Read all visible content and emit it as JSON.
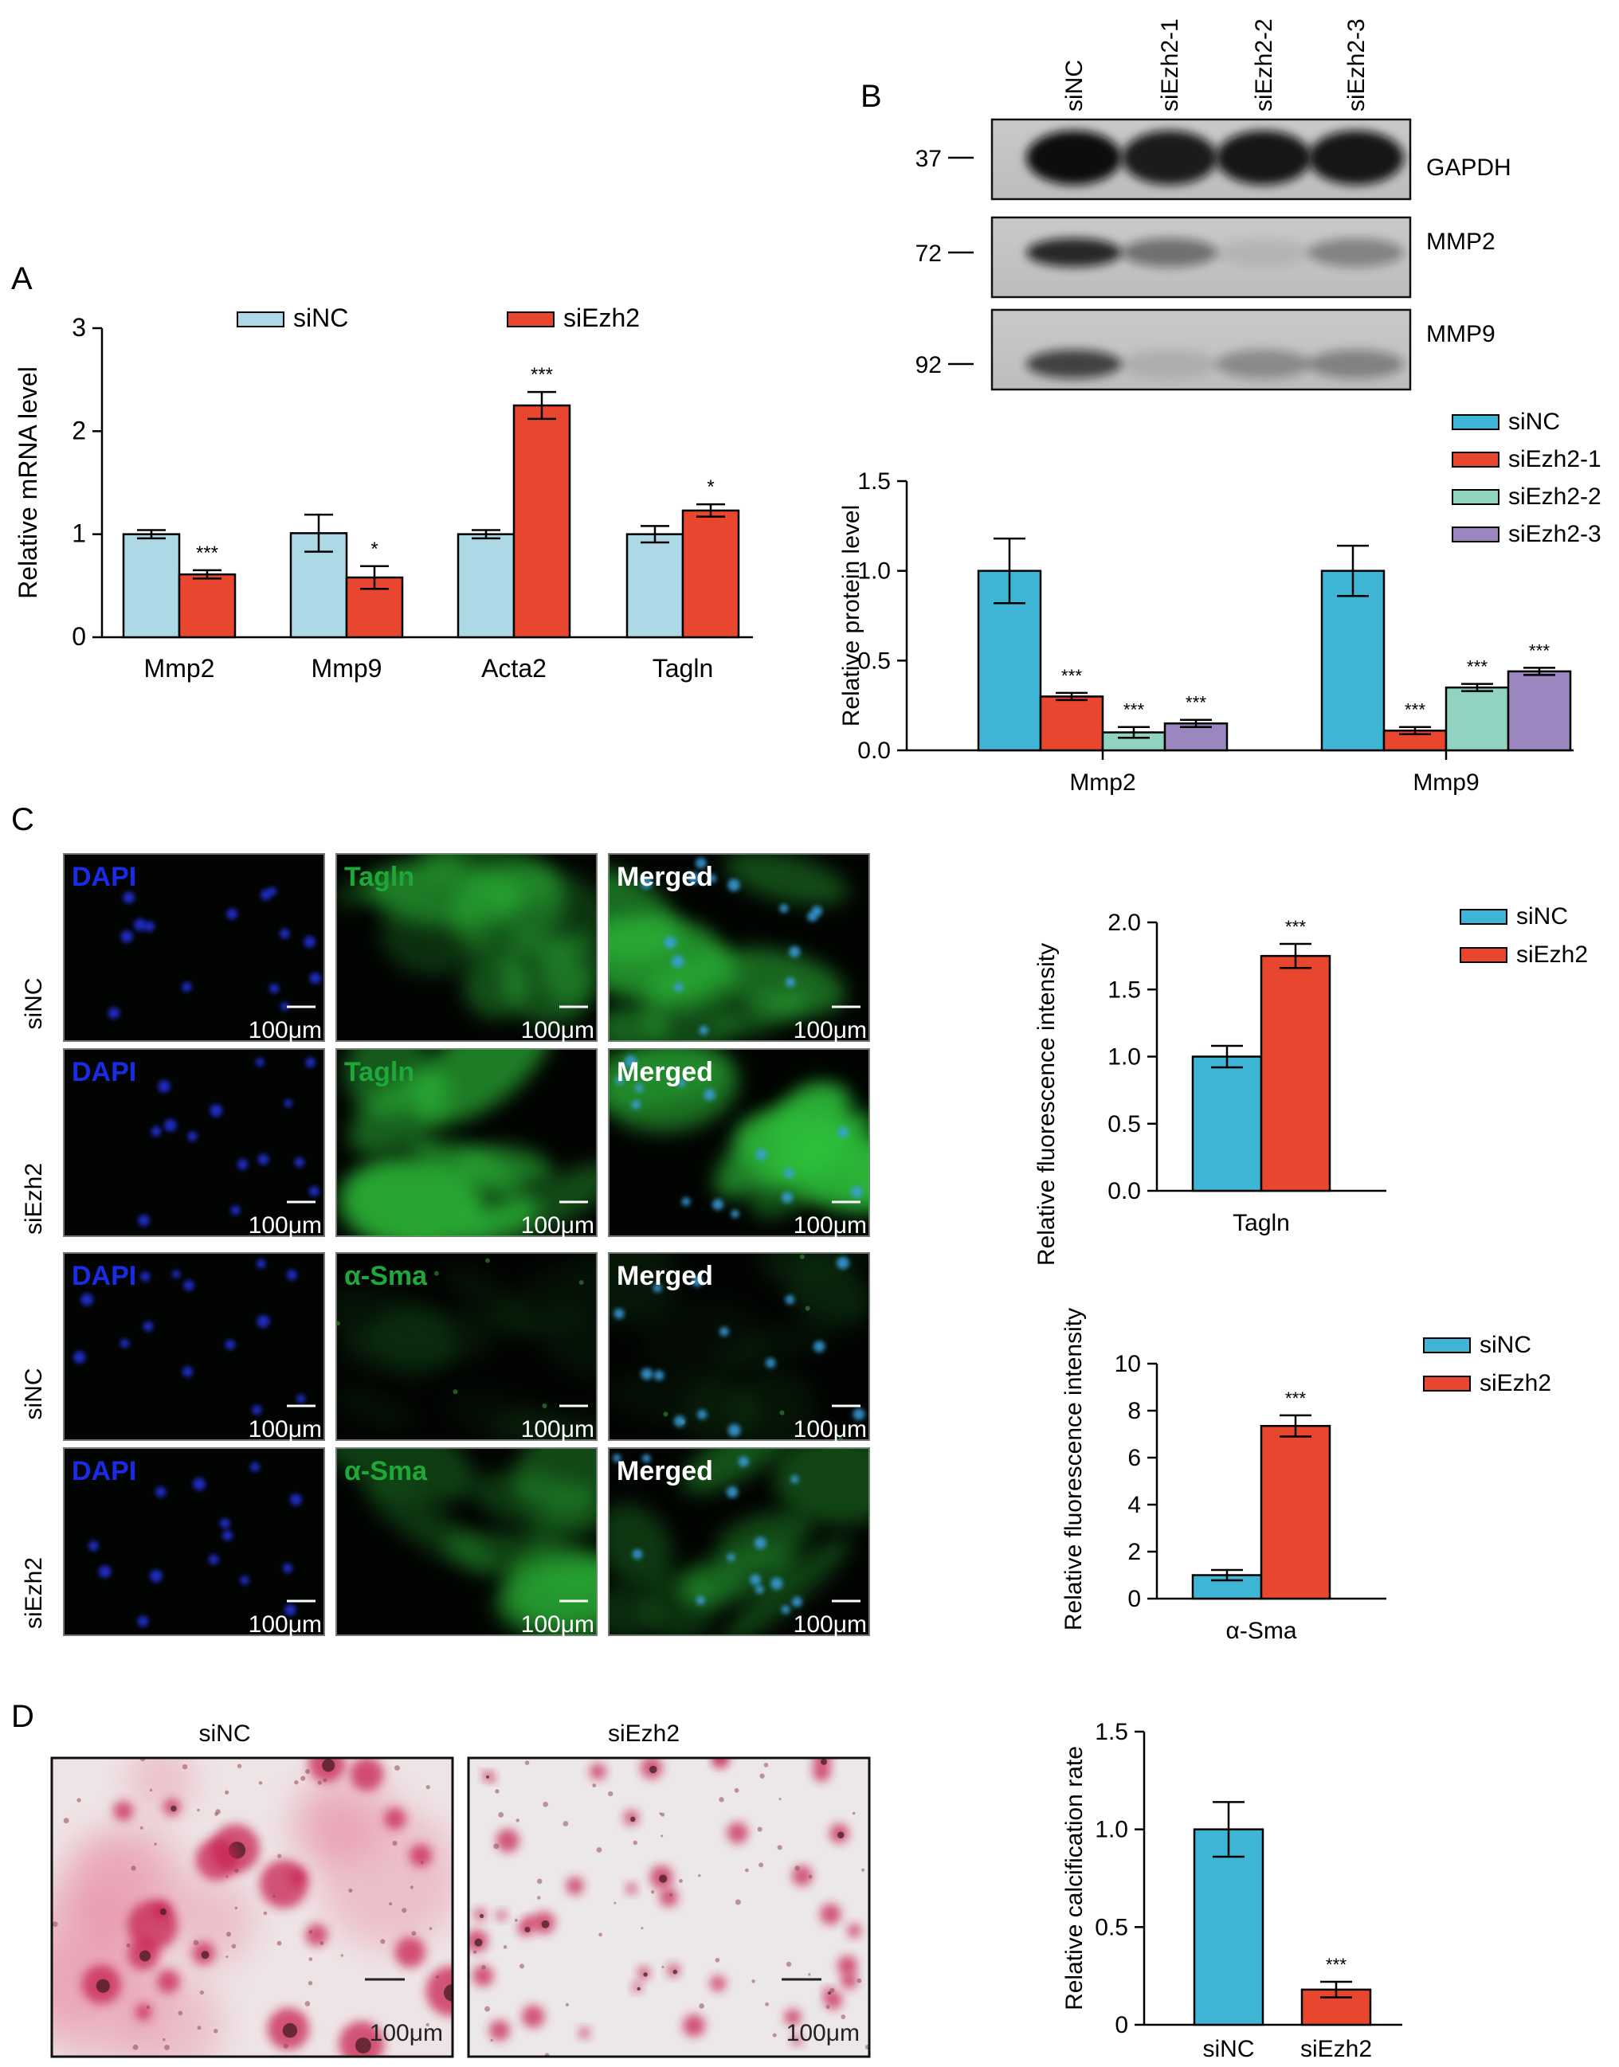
{
  "panels": {
    "a": "A",
    "b": "B",
    "c": "C",
    "d": "D"
  },
  "colors": {
    "siNC_A": "#add8e6",
    "siEzh2": "#e8462e",
    "siNC": "#3fb5d6",
    "siEzh2_2": "#8fd3c0",
    "siEzh2_3": "#9b86c0"
  },
  "chart_data": [
    {
      "id": "A",
      "type": "bar",
      "ylabel": "Relative mRNA level",
      "ylim": [
        0,
        3
      ],
      "yticks": [
        "0",
        "1",
        "2",
        "3"
      ],
      "categories": [
        "Mmp2",
        "Mmp9",
        "Acta2",
        "Tagln"
      ],
      "series": [
        {
          "name": "siNC",
          "values": [
            1.0,
            1.01,
            1.0,
            1.0
          ],
          "errors": [
            0.04,
            0.18,
            0.04,
            0.08
          ],
          "sig": [
            "",
            "",
            "",
            ""
          ]
        },
        {
          "name": "siEzh2",
          "values": [
            0.61,
            0.58,
            2.25,
            1.23
          ],
          "errors": [
            0.04,
            0.11,
            0.13,
            0.06
          ],
          "sig": [
            "***",
            "*",
            "***",
            "*"
          ]
        }
      ],
      "legend": "top"
    },
    {
      "id": "B",
      "type": "bar",
      "ylabel": "Relative protein level",
      "ylim": [
        0,
        1.5
      ],
      "yticks": [
        "0.0",
        "0.5",
        "1.0",
        "1.5"
      ],
      "categories": [
        "Mmp2",
        "Mmp9"
      ],
      "series": [
        {
          "name": "siNC",
          "values": [
            1.0,
            1.0
          ],
          "errors": [
            0.18,
            0.14
          ],
          "sig": [
            "",
            ""
          ]
        },
        {
          "name": "siEzh2-1",
          "values": [
            0.3,
            0.11
          ],
          "errors": [
            0.02,
            0.02
          ],
          "sig": [
            "***",
            "***"
          ]
        },
        {
          "name": "siEzh2-2",
          "values": [
            0.1,
            0.35
          ],
          "errors": [
            0.03,
            0.02
          ],
          "sig": [
            "***",
            "***"
          ]
        },
        {
          "name": "siEzh2-3",
          "values": [
            0.15,
            0.44
          ],
          "errors": [
            0.02,
            0.02
          ],
          "sig": [
            "***",
            "***"
          ]
        }
      ],
      "legend": "top-right"
    },
    {
      "id": "C1",
      "type": "bar",
      "ylabel": "Relative fluorescence intensity",
      "ylim": [
        0,
        2.0
      ],
      "yticks": [
        "0.0",
        "0.5",
        "1.0",
        "1.5",
        "2.0"
      ],
      "categories": [
        "Tagln"
      ],
      "series": [
        {
          "name": "siNC",
          "values": [
            1.0
          ],
          "errors": [
            0.08
          ],
          "sig": [
            ""
          ]
        },
        {
          "name": "siEzh2",
          "values": [
            1.75
          ],
          "errors": [
            0.09
          ],
          "sig": [
            "***"
          ]
        }
      ],
      "legend": "top-right"
    },
    {
      "id": "C2",
      "type": "bar",
      "ylabel": "Relative fluorescence intensity",
      "ylim": [
        0,
        10
      ],
      "yticks": [
        "0",
        "2",
        "4",
        "6",
        "8",
        "10"
      ],
      "categories": [
        "α-Sma"
      ],
      "series": [
        {
          "name": "siNC",
          "values": [
            1.0
          ],
          "errors": [
            0.22
          ],
          "sig": [
            ""
          ]
        },
        {
          "name": "siEzh2",
          "values": [
            7.35
          ],
          "errors": [
            0.45
          ],
          "sig": [
            "***"
          ]
        }
      ],
      "legend": "top-right"
    },
    {
      "id": "D",
      "type": "bar",
      "ylabel": "Relative calcification rate",
      "ylim": [
        0,
        1.5
      ],
      "yticks": [
        "0",
        "0.5",
        "1.0",
        "1.5"
      ],
      "categories": [
        "siNC",
        "siEzh2"
      ],
      "series": [
        {
          "name": "",
          "values": [
            1.0,
            0.18
          ],
          "errors": [
            0.14,
            0.04
          ],
          "sig": [
            "",
            "***"
          ]
        }
      ],
      "legend": "none"
    }
  ],
  "western_blot": {
    "lanes": [
      "siNC",
      "siEzh2-1",
      "siEzh2-2",
      "siEzh2-3"
    ],
    "bands": [
      {
        "marker": "37",
        "label": "GAPDH",
        "intensity": [
          1.0,
          0.92,
          0.95,
          0.95
        ]
      },
      {
        "marker": "72",
        "label": "MMP2",
        "intensity": [
          0.85,
          0.45,
          0.08,
          0.35
        ]
      },
      {
        "marker": "92",
        "label": "MMP9",
        "intensity": [
          0.7,
          0.1,
          0.3,
          0.35
        ]
      }
    ]
  },
  "microscopy": {
    "rows": [
      "siNC",
      "siEzh2",
      "siNC",
      "siEzh2"
    ],
    "channels": [
      [
        "DAPI",
        "Tagln",
        "Merged"
      ],
      [
        "DAPI",
        "Tagln",
        "Merged"
      ],
      [
        "DAPI",
        "α-Sma",
        "Merged"
      ],
      [
        "DAPI",
        "α-Sma",
        "Merged"
      ]
    ],
    "scale": "100μm"
  },
  "staining": {
    "labels": [
      "siNC",
      "siEzh2"
    ],
    "scale": "100μm"
  }
}
